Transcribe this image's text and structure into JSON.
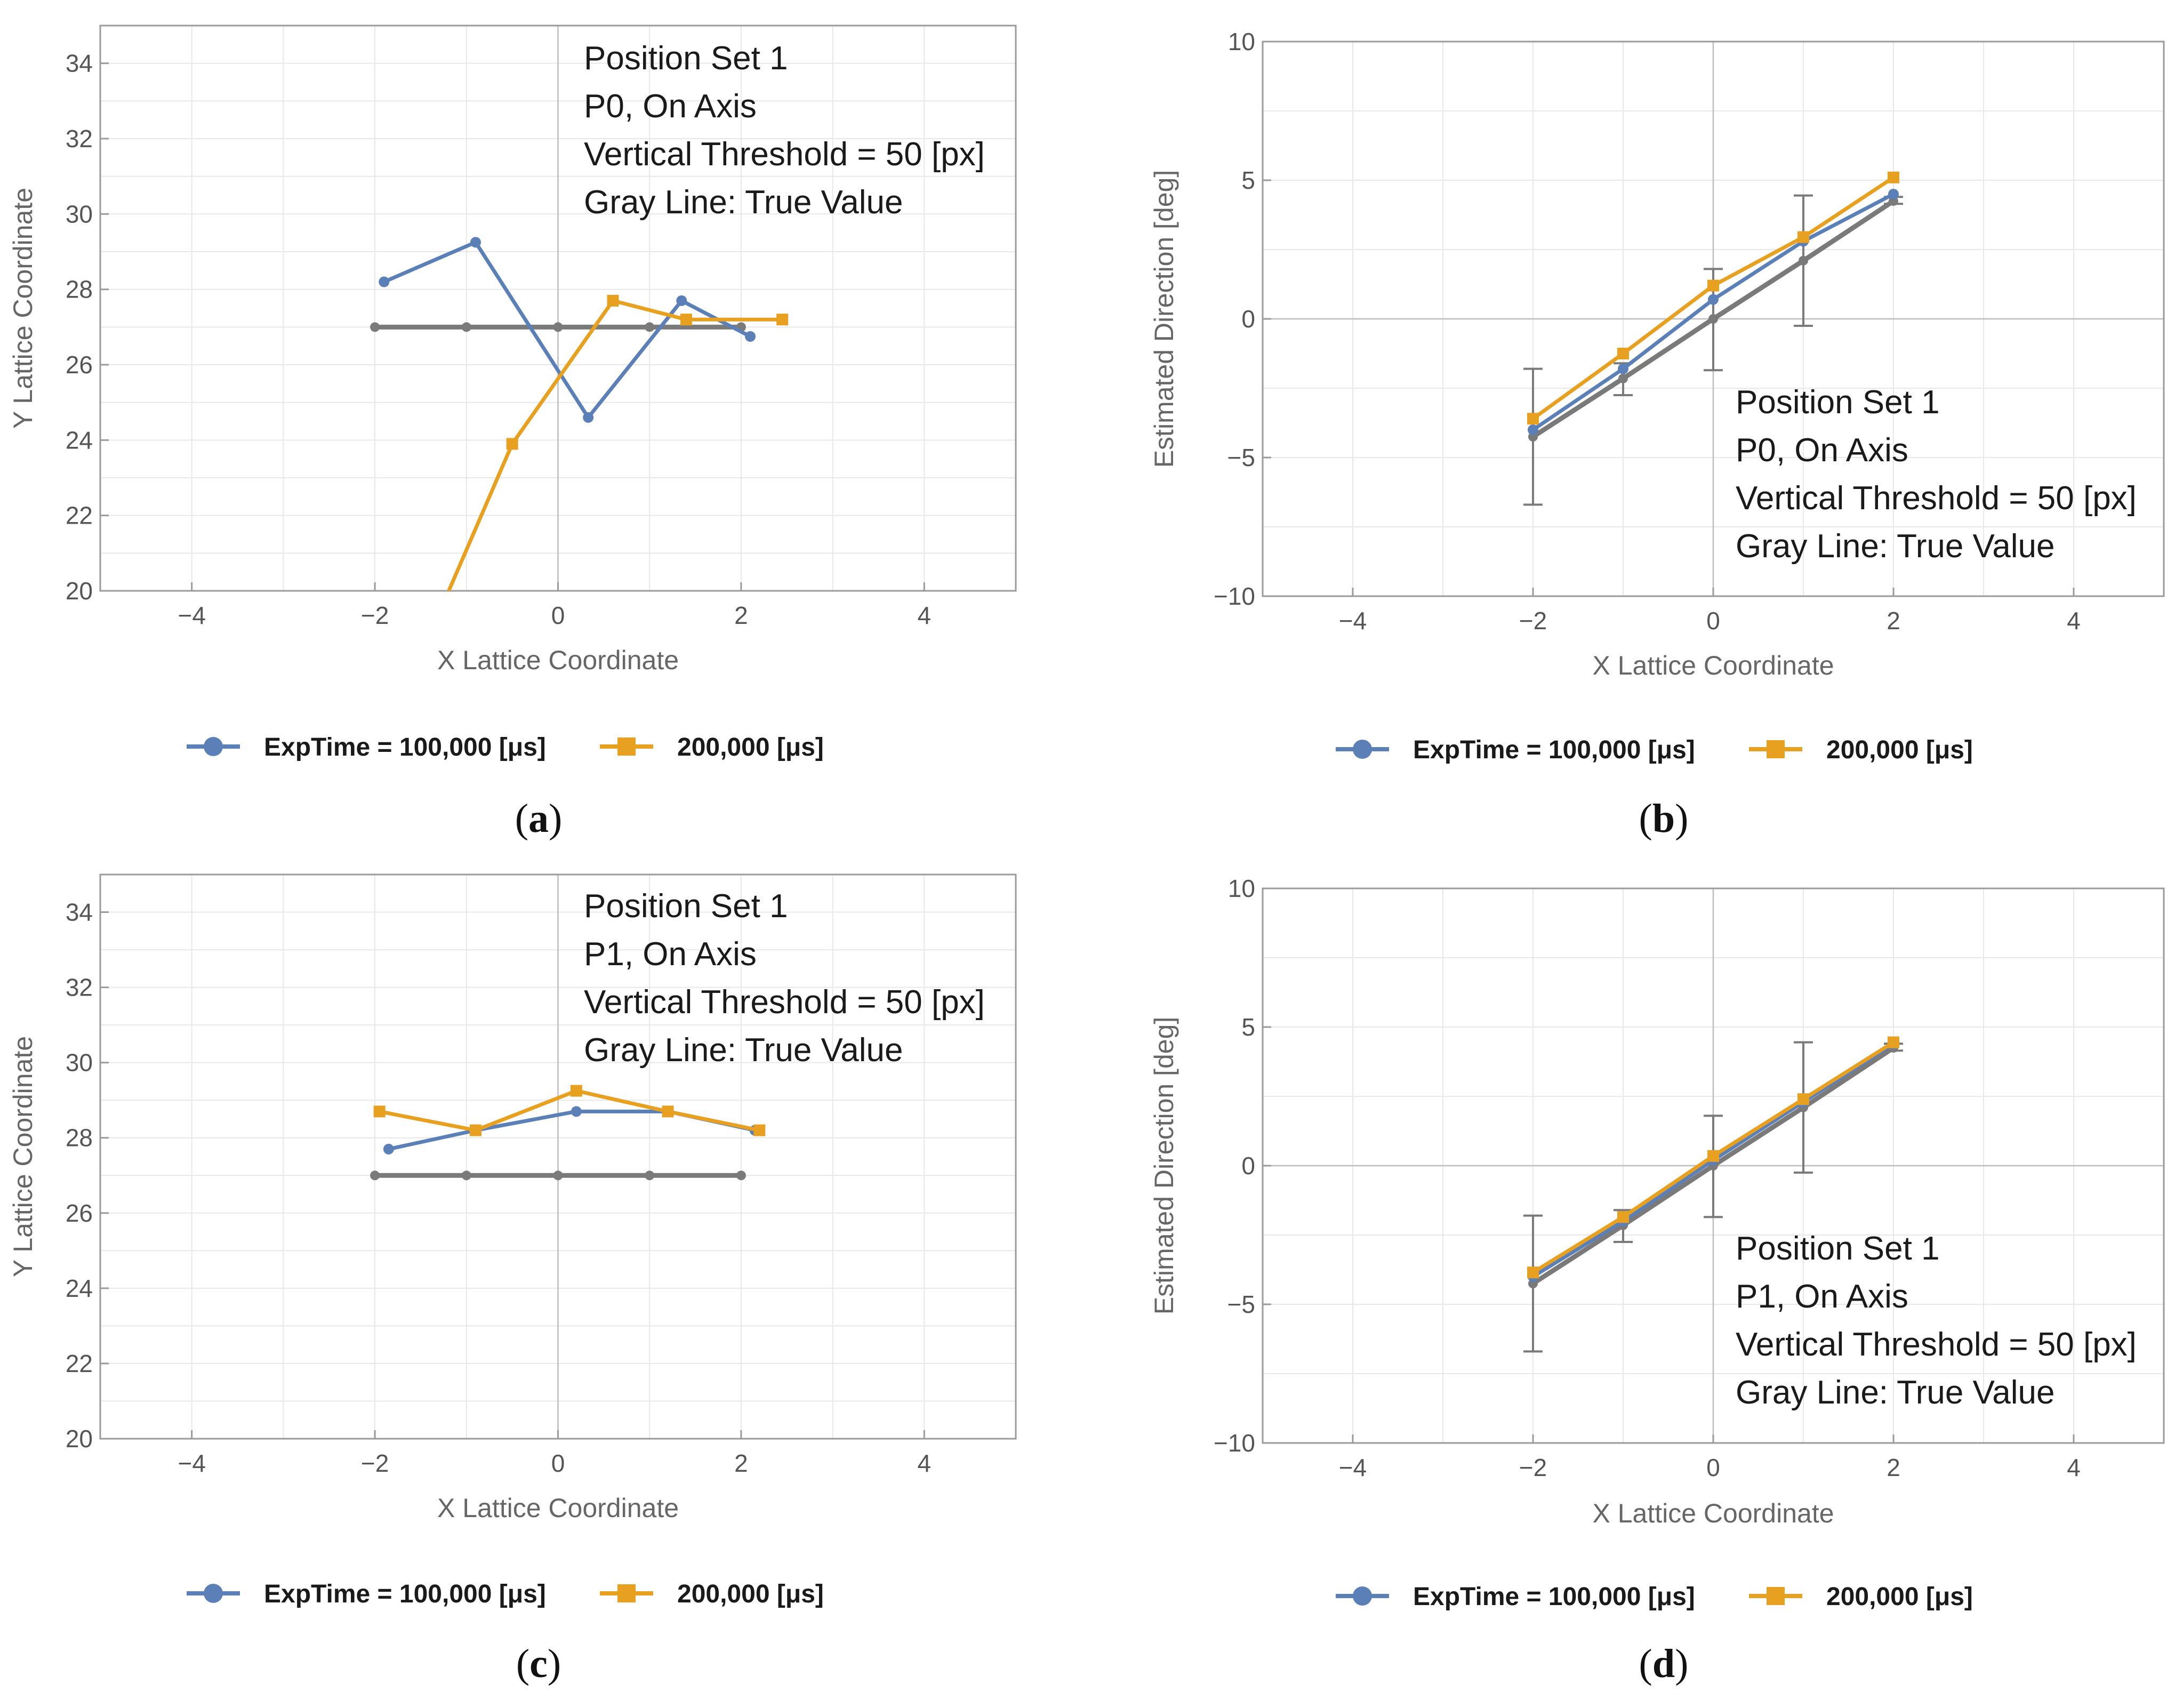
{
  "colors": {
    "series_blue": "#5b80b8",
    "series_orange": "#e8a020",
    "true_value": "#7a7a7a",
    "frame": "#9a9a9a",
    "grid": "#e8e8e8",
    "zero_line": "#bdbdbd"
  },
  "chart_data": [
    {
      "id": "a",
      "type": "line",
      "caption": "a",
      "xlabel": "X Lattice Coordinate",
      "ylabel": "Y Lattice Coordinate",
      "xlim": [
        -5,
        5
      ],
      "ylim": [
        20,
        35
      ],
      "xticks": [
        -4,
        -2,
        0,
        2,
        4
      ],
      "yticks": [
        20,
        22,
        24,
        26,
        28,
        30,
        32,
        34
      ],
      "grid": true,
      "annotation": [
        "Position Set 1",
        "P0, On Axis",
        "Vertical Threshold = 50 [px]",
        "Gray Line: True Value"
      ],
      "annotation_position": "top-right",
      "legend_position": "bottom",
      "series": [
        {
          "name": "ExpTime = 100,000 [μs]",
          "color": "#5b80b8",
          "marker": "circle",
          "x": [
            -1.9,
            -0.9,
            0.33,
            1.35,
            2.1
          ],
          "y": [
            28.2,
            29.25,
            24.6,
            27.7,
            26.75
          ]
        },
        {
          "name": "200,000 [μs]",
          "color": "#e8a020",
          "marker": "square",
          "x": [
            -1.3,
            -0.5,
            0.6,
            1.4,
            2.45
          ],
          "y": [
            19.4,
            23.9,
            27.7,
            27.2,
            27.2
          ]
        },
        {
          "name": "",
          "color": "#7a7a7a",
          "marker": "circle",
          "x": [
            -2,
            -1,
            0,
            1,
            2
          ],
          "y": [
            27,
            27,
            27,
            27,
            27
          ]
        }
      ]
    },
    {
      "id": "b",
      "type": "line",
      "caption": "b",
      "xlabel": "X Lattice Coordinate",
      "ylabel": "Estimated Direction [deg]",
      "xlim": [
        -5,
        5
      ],
      "ylim": [
        -10,
        10
      ],
      "xticks": [
        -4,
        -2,
        0,
        2,
        4
      ],
      "yticks": [
        -10,
        -5,
        0,
        5,
        10
      ],
      "grid": true,
      "annotation": [
        "Position Set 1",
        "P0, On Axis",
        "Vertical Threshold = 50 [px]",
        "Gray Line: True Value"
      ],
      "annotation_position": "bottom-right",
      "legend_position": "bottom",
      "series": [
        {
          "name": "ExpTime = 100,000 [μs]",
          "color": "#5b80b8",
          "marker": "circle",
          "x": [
            -2,
            -1,
            0,
            1,
            2
          ],
          "y": [
            -4.0,
            -1.8,
            0.7,
            2.8,
            4.5
          ]
        },
        {
          "name": "200,000 [μs]",
          "color": "#e8a020",
          "marker": "square",
          "x": [
            -2,
            -1,
            0,
            1,
            2
          ],
          "y": [
            -3.6,
            -1.25,
            1.2,
            2.95,
            5.1
          ]
        },
        {
          "name": "",
          "color": "#7a7a7a",
          "marker": "circle",
          "x": [
            -2,
            -1,
            0,
            1,
            2
          ],
          "y": [
            -4.25,
            -2.15,
            0.0,
            2.1,
            4.25
          ],
          "err_low": [
            -6.7,
            -2.75,
            -1.85,
            -0.25,
            4.15
          ],
          "err_high": [
            -1.8,
            -1.6,
            1.8,
            4.45,
            4.4
          ]
        }
      ]
    },
    {
      "id": "c",
      "type": "line",
      "caption": "c",
      "xlabel": "X Lattice Coordinate",
      "ylabel": "Y Lattice Coordinate",
      "xlim": [
        -5,
        5
      ],
      "ylim": [
        20,
        35
      ],
      "xticks": [
        -4,
        -2,
        0,
        2,
        4
      ],
      "yticks": [
        20,
        22,
        24,
        26,
        28,
        30,
        32,
        34
      ],
      "grid": true,
      "annotation": [
        "Position Set 1",
        "P1, On Axis",
        "Vertical Threshold = 50 [px]",
        "Gray Line: True Value"
      ],
      "annotation_position": "top-right",
      "legend_position": "bottom",
      "series": [
        {
          "name": "ExpTime = 100,000 [μs]",
          "color": "#5b80b8",
          "marker": "circle",
          "x": [
            -1.85,
            -0.9,
            0.2,
            1.2,
            2.15
          ],
          "y": [
            27.7,
            28.2,
            28.7,
            28.7,
            28.2
          ]
        },
        {
          "name": "200,000 [μs]",
          "color": "#e8a020",
          "marker": "square",
          "x": [
            -1.95,
            -0.9,
            0.2,
            1.2,
            2.2
          ],
          "y": [
            28.7,
            28.2,
            29.25,
            28.7,
            28.2
          ]
        },
        {
          "name": "",
          "color": "#7a7a7a",
          "marker": "circle",
          "x": [
            -2,
            -1,
            0,
            1,
            2
          ],
          "y": [
            27,
            27,
            27,
            27,
            27
          ]
        }
      ]
    },
    {
      "id": "d",
      "type": "line",
      "caption": "d",
      "xlabel": "X Lattice Coordinate",
      "ylabel": "Estimated Direction [deg]",
      "xlim": [
        -5,
        5
      ],
      "ylim": [
        -10,
        10
      ],
      "xticks": [
        -4,
        -2,
        0,
        2,
        4
      ],
      "yticks": [
        -10,
        -5,
        0,
        5,
        10
      ],
      "grid": true,
      "annotation": [
        "Position Set 1",
        "P1, On Axis",
        "Vertical Threshold = 50 [px]",
        "Gray Line: True Value"
      ],
      "annotation_position": "bottom-right",
      "legend_position": "bottom",
      "series": [
        {
          "name": "ExpTime = 100,000 [μs]",
          "color": "#5b80b8",
          "marker": "circle",
          "x": [
            -2,
            -1,
            0,
            1,
            2
          ],
          "y": [
            -4.0,
            -2.0,
            0.2,
            2.3,
            4.4
          ]
        },
        {
          "name": "200,000 [μs]",
          "color": "#e8a020",
          "marker": "square",
          "x": [
            -2,
            -1,
            0,
            1,
            2
          ],
          "y": [
            -3.85,
            -1.85,
            0.35,
            2.4,
            4.45
          ]
        },
        {
          "name": "",
          "color": "#7a7a7a",
          "marker": "circle",
          "x": [
            -2,
            -1,
            0,
            1,
            2
          ],
          "y": [
            -4.25,
            -2.15,
            0.0,
            2.1,
            4.25
          ],
          "err_low": [
            -6.7,
            -2.75,
            -1.85,
            -0.25,
            4.15
          ],
          "err_high": [
            -1.8,
            -1.6,
            1.8,
            4.45,
            4.4
          ]
        }
      ]
    }
  ]
}
